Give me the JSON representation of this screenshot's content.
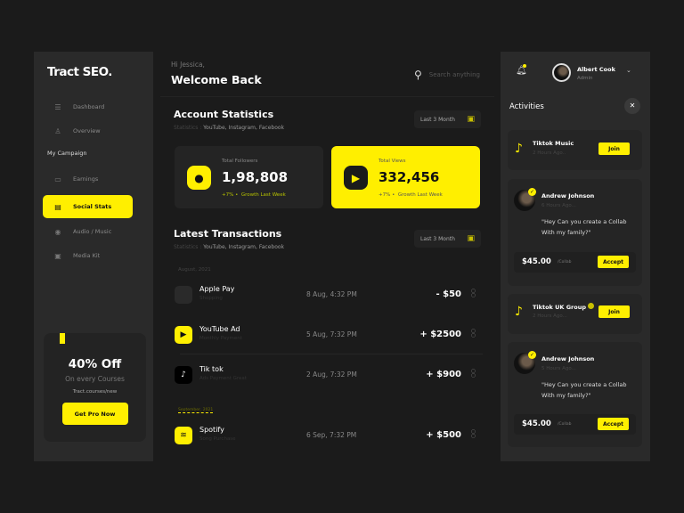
{
  "sidebar": {
    "logo": "Tract SEO.",
    "items": [
      {
        "label": "Dashboard",
        "icon": "sliders-icon"
      },
      {
        "label": "Overview",
        "icon": "user-icon"
      },
      {
        "label": "Earnings",
        "icon": "briefcase-icon"
      },
      {
        "label": "Social Stats",
        "icon": "chat-icon",
        "active": true
      },
      {
        "label": "Audio / Music",
        "icon": "audio-icon"
      },
      {
        "label": "Media Kit",
        "icon": "bag-icon"
      }
    ],
    "section": "My Campaign",
    "promo": {
      "title": "40% Off",
      "subtitle": "On every Courses",
      "url": "Tract.courses/new",
      "button": "Get Pro Now"
    }
  },
  "header": {
    "greeting": "Hi Jessica,",
    "title": "Welcome Back",
    "search_placeholder": "Search anything"
  },
  "stats": {
    "title": "Account Statistics",
    "meta_label": "Statistics :",
    "meta": "YouTube, Instagram, Facebook",
    "filter": "Last 3 Month",
    "cards": [
      {
        "label": "Total Followers",
        "value": "1,98,808",
        "growth": "+7% •",
        "growth_text": "Growth Last Week"
      },
      {
        "label": "Total Views",
        "value": "332,456",
        "growth": "+7% •",
        "growth_text": "Growth Last Week"
      }
    ]
  },
  "transactions": {
    "title": "Latest Transactions",
    "meta_label": "Statistics :",
    "meta": "YouTube, Instagram, Facebook",
    "filter": "Last 3 Month",
    "month1": "August, 2021",
    "month2": "September, 2021",
    "rows": [
      {
        "name": "Apple Pay",
        "desc": "Shopping",
        "date": "8 Aug, 4:32 PM",
        "amount": "- $50"
      },
      {
        "name": "YouTube Ad",
        "desc": "Monthly Payment",
        "date": "5 Aug, 7:32 PM",
        "amount": "+ $2500"
      },
      {
        "name": "Tik tok",
        "desc": "Ads Payment Great",
        "date": "2 Aug, 7:32 PM",
        "amount": "+ $900"
      },
      {
        "name": "Spotify",
        "desc": "Song Purchase",
        "date": "6 Sep, 7:32 PM",
        "amount": "+ $500"
      }
    ]
  },
  "user": {
    "name": "Albert Cook",
    "role": "Admin"
  },
  "activities": {
    "title": "Activities",
    "items": [
      {
        "title": "Tiktok Music",
        "ago": "2 Hours Ago..",
        "button": "Join"
      },
      {
        "name": "Andrew Johnson",
        "ago": "6 Hours Ago...",
        "message": "\"Hey Can you create a Collab With my family?\"",
        "price": "$45.00",
        "unit": "/Collab",
        "button": "Accept"
      },
      {
        "title": "Tiktok UK Group",
        "ago": "2 Hours Ago...",
        "button": "Join"
      },
      {
        "name": "Andrew Johnson",
        "ago": "5 Hours Ago...",
        "message": "\"Hey Can you create a Collab With my family?\"",
        "price": "$45.00",
        "unit": "/Collab",
        "button": "Accept"
      }
    ]
  },
  "colors": {
    "accent": "#ffef00",
    "bg": "#1b1b1b",
    "panel": "#2a2a2a"
  }
}
